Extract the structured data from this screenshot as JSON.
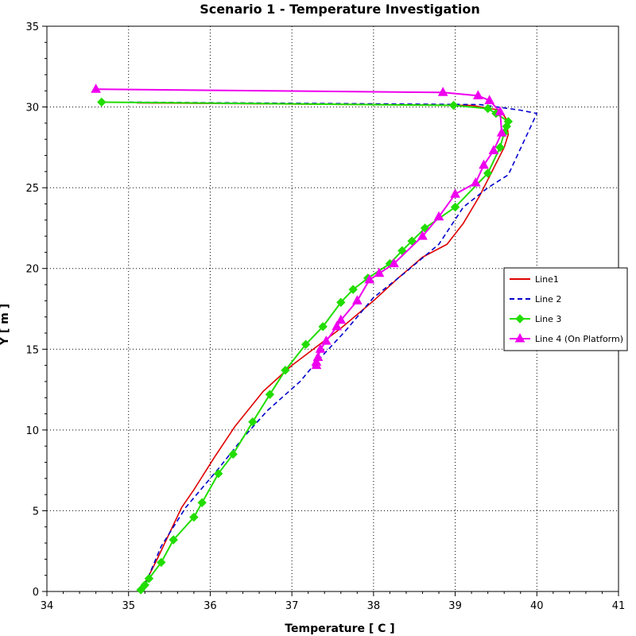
{
  "chart_data": {
    "type": "line",
    "title": "Scenario 1 - Temperature Investigation",
    "xlabel": "Temperature [ C ]",
    "ylabel": "Y [ m ]",
    "xlim": [
      34,
      41
    ],
    "ylim": [
      0,
      35
    ],
    "x_ticks": [
      "34",
      "35",
      "36",
      "37",
      "38",
      "39",
      "40",
      "41"
    ],
    "y_ticks": [
      "0",
      "5",
      "10",
      "15",
      "20",
      "25",
      "30",
      "35"
    ],
    "grid": true,
    "legend_position": "right",
    "series": [
      {
        "name": "Line1",
        "color": "#dd0000",
        "style": "solid",
        "marker": "none",
        "points": [
          [
            35.2,
            0.5
          ],
          [
            35.35,
            2.0
          ],
          [
            35.5,
            3.6
          ],
          [
            35.65,
            5.2
          ],
          [
            35.8,
            6.3
          ],
          [
            36.05,
            8.3
          ],
          [
            36.3,
            10.2
          ],
          [
            36.65,
            12.4
          ],
          [
            37.0,
            14.0
          ],
          [
            37.6,
            16.3
          ],
          [
            38.0,
            18.0
          ],
          [
            38.3,
            19.4
          ],
          [
            38.6,
            20.7
          ],
          [
            38.9,
            21.5
          ],
          [
            39.1,
            22.8
          ],
          [
            39.3,
            24.5
          ],
          [
            39.5,
            26.5
          ],
          [
            39.6,
            27.5
          ],
          [
            39.65,
            28.3
          ],
          [
            39.62,
            29.3
          ],
          [
            39.55,
            29.8
          ],
          [
            39.2,
            30.1
          ],
          [
            35.1,
            30.25
          ]
        ]
      },
      {
        "name": "Line 2",
        "color": "#0000cc",
        "style": "dashed",
        "marker": "none",
        "points": [
          [
            35.2,
            0.4
          ],
          [
            35.4,
            2.8
          ],
          [
            35.7,
            5.2
          ],
          [
            36.1,
            7.6
          ],
          [
            36.4,
            9.5
          ],
          [
            36.7,
            11.2
          ],
          [
            37.1,
            13.0
          ],
          [
            37.3,
            14.2
          ],
          [
            37.65,
            16.1
          ],
          [
            38.0,
            18.2
          ],
          [
            38.4,
            19.8
          ],
          [
            38.8,
            21.5
          ],
          [
            39.1,
            23.8
          ],
          [
            39.4,
            25.0
          ],
          [
            39.65,
            25.8
          ],
          [
            40.0,
            29.6
          ],
          [
            39.8,
            29.8
          ],
          [
            39.3,
            30.15
          ],
          [
            35.0,
            30.3
          ]
        ]
      },
      {
        "name": "Line 3",
        "color": "#22dd00",
        "style": "solid",
        "marker": "diamond",
        "points": [
          [
            35.15,
            0.1
          ],
          [
            35.2,
            0.4
          ],
          [
            35.25,
            0.8
          ],
          [
            35.4,
            1.8
          ],
          [
            35.55,
            3.2
          ],
          [
            35.8,
            4.6
          ],
          [
            35.9,
            5.5
          ],
          [
            36.1,
            7.3
          ],
          [
            36.28,
            8.5
          ],
          [
            36.52,
            10.5
          ],
          [
            36.73,
            12.2
          ],
          [
            36.92,
            13.7
          ],
          [
            37.17,
            15.3
          ],
          [
            37.38,
            16.4
          ],
          [
            37.6,
            17.9
          ],
          [
            37.75,
            18.7
          ],
          [
            37.93,
            19.4
          ],
          [
            38.2,
            20.3
          ],
          [
            38.35,
            21.1
          ],
          [
            38.47,
            21.7
          ],
          [
            38.63,
            22.5
          ],
          [
            39.0,
            23.8
          ],
          [
            39.4,
            25.9
          ],
          [
            39.55,
            27.5
          ],
          [
            39.6,
            28.4
          ],
          [
            39.63,
            28.8
          ],
          [
            39.65,
            29.1
          ],
          [
            39.5,
            29.6
          ],
          [
            39.4,
            29.9
          ],
          [
            38.98,
            30.1
          ],
          [
            34.67,
            30.3
          ]
        ]
      },
      {
        "name": "Line 4 (On Platform)",
        "color": "#ee00ee",
        "style": "solid",
        "marker": "triangle",
        "points": [
          [
            37.3,
            14.0
          ],
          [
            37.3,
            14.2
          ],
          [
            37.32,
            14.5
          ],
          [
            37.35,
            15.0
          ],
          [
            37.42,
            15.5
          ],
          [
            37.55,
            16.4
          ],
          [
            37.6,
            16.8
          ],
          [
            37.8,
            18.0
          ],
          [
            37.95,
            19.3
          ],
          [
            38.07,
            19.7
          ],
          [
            38.25,
            20.3
          ],
          [
            38.6,
            22.0
          ],
          [
            38.8,
            23.2
          ],
          [
            39.0,
            24.6
          ],
          [
            39.25,
            25.3
          ],
          [
            39.35,
            26.4
          ],
          [
            39.47,
            27.3
          ],
          [
            39.57,
            28.4
          ],
          [
            39.55,
            29.7
          ],
          [
            39.42,
            30.4
          ],
          [
            39.28,
            30.7
          ],
          [
            38.85,
            30.9
          ],
          [
            34.6,
            31.1
          ]
        ]
      }
    ]
  }
}
